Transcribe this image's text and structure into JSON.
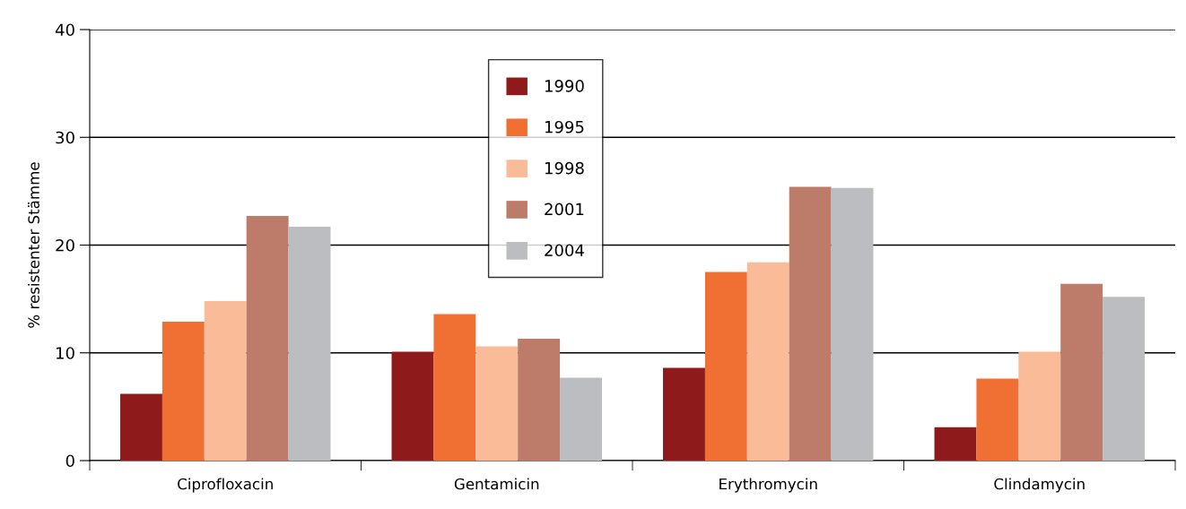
{
  "chart_data": {
    "type": "bar",
    "ylabel": "% resistenter Stämme",
    "categories": [
      "Ciprofloxacin",
      "Gentamicin",
      "Erythromycin",
      "Clindamycin"
    ],
    "series": [
      {
        "name": "1990",
        "color": "#8e1a1c",
        "values": [
          6.2,
          10.1,
          8.6,
          3.1
        ]
      },
      {
        "name": "1995",
        "color": "#f07033",
        "values": [
          12.9,
          13.6,
          17.5,
          7.6
        ]
      },
      {
        "name": "1998",
        "color": "#f9bb98",
        "values": [
          14.8,
          10.6,
          18.4,
          10.1
        ]
      },
      {
        "name": "2001",
        "color": "#bd7c6a",
        "values": [
          22.7,
          11.3,
          25.4,
          16.4
        ]
      },
      {
        "name": "2004",
        "color": "#bcbdc1",
        "values": [
          21.7,
          7.7,
          25.3,
          15.2
        ]
      }
    ],
    "ylim": [
      0,
      40
    ],
    "yticks": [
      0,
      10,
      20,
      30,
      40
    ],
    "grid": "y",
    "legend": "top"
  }
}
